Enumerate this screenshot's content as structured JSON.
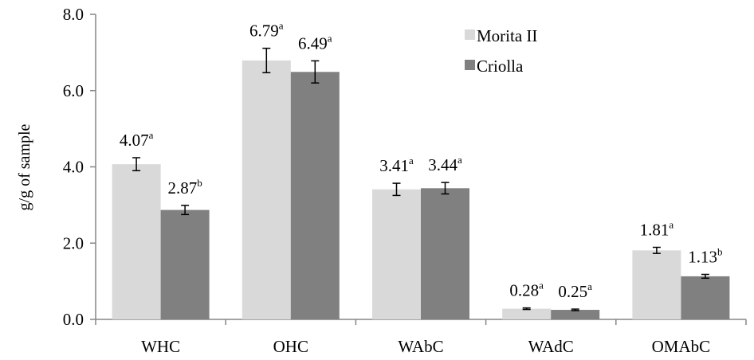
{
  "chart_data": {
    "type": "bar",
    "title": "",
    "xlabel": "",
    "ylabel": "g/g of sample",
    "ylim": [
      0,
      8
    ],
    "yticks": [
      "0.0",
      "2.0",
      "4.0",
      "6.0",
      "8.0"
    ],
    "grid": false,
    "legend_position": "top-right",
    "categories": [
      "WHC",
      "OHC",
      "WAbC",
      "WAdC",
      "OMAbC"
    ],
    "series": [
      {
        "name": "Morita II",
        "color": "#d9d9d9",
        "values": [
          4.07,
          6.79,
          3.41,
          0.28,
          1.81
        ],
        "errors": [
          0.17,
          0.32,
          0.16,
          0.02,
          0.08
        ],
        "value_labels": [
          "4.07",
          "6.79",
          "3.41",
          "0.28",
          "1.81"
        ],
        "sig_letters": [
          "a",
          "a",
          "a",
          "a",
          "a"
        ]
      },
      {
        "name": "Criolla",
        "color": "#808080",
        "values": [
          2.87,
          6.49,
          3.44,
          0.25,
          1.13
        ],
        "errors": [
          0.12,
          0.29,
          0.15,
          0.02,
          0.05
        ],
        "value_labels": [
          "2.87",
          "6.49",
          "3.44",
          "0.25",
          "1.13"
        ],
        "sig_letters": [
          "b",
          "a",
          "a",
          "a",
          "b"
        ]
      }
    ]
  }
}
